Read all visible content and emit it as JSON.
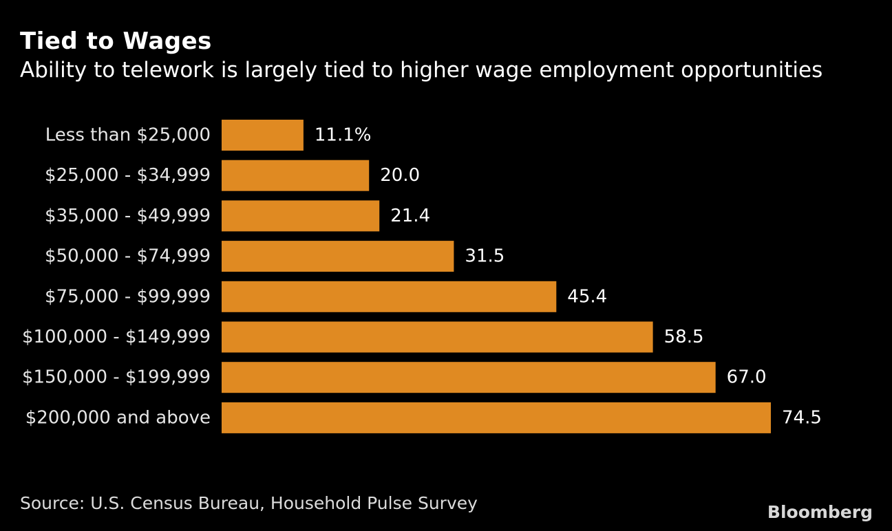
{
  "header": {
    "title": "Tied to Wages",
    "subtitle": "Ability to telework is largely tied to higher wage employment opportunities"
  },
  "chart_data": {
    "type": "bar",
    "orientation": "horizontal",
    "categories": [
      "Less than $25,000",
      "$25,000 - $34,999",
      "$35,000 - $49,999",
      "$50,000 - $74,999",
      "$75,000 - $99,999",
      "$100,000 - $149,999",
      "$150,000 - $199,999",
      "$200,000 and above"
    ],
    "values": [
      11.1,
      20.0,
      21.4,
      31.5,
      45.4,
      58.5,
      67.0,
      74.5
    ],
    "value_labels": [
      "11.1%",
      "20.0",
      "21.4",
      "31.5",
      "45.4",
      "58.5",
      "67.0",
      "74.5"
    ],
    "title": "Tied to Wages",
    "xlabel": "",
    "ylabel": "",
    "xlim": [
      0,
      74.5
    ],
    "bar_color": "#e08a22",
    "background_color": "#000000",
    "label_color": "#ffffff"
  },
  "footer": {
    "source": "Source: U.S. Census Bureau, Household Pulse Survey",
    "brand": "Bloomberg"
  }
}
